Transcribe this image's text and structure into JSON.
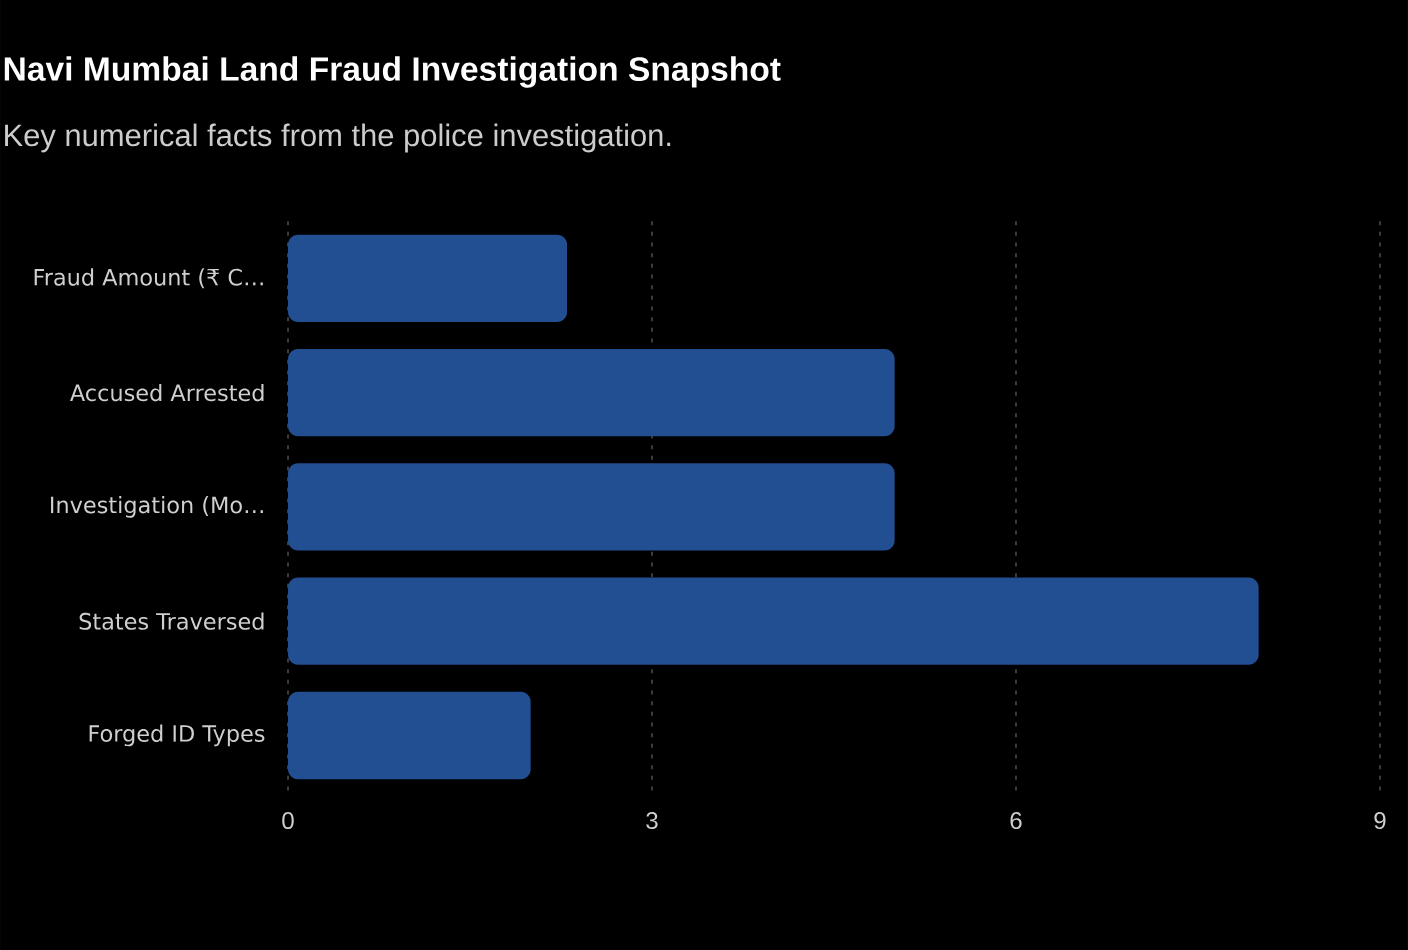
{
  "chart_data": {
    "type": "bar",
    "orientation": "horizontal",
    "title": "Navi Mumbai Land Fraud Investigation Snapshot",
    "subtitle": "Key numerical facts from the police investigation.",
    "categories": [
      "Fraud Amount (₹ C…",
      "Accused Arrested",
      "Investigation (Mo…",
      "States Traversed",
      "Forged ID Types"
    ],
    "values": [
      2.3,
      5,
      5,
      8,
      2
    ],
    "color": "#214f91",
    "xlim": [
      0,
      9
    ],
    "xticks": [
      0,
      3,
      6,
      9
    ],
    "grid": "x"
  }
}
